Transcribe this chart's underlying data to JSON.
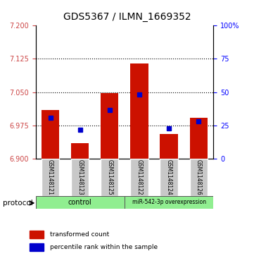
{
  "title": "GDS5367 / ILMN_1669352",
  "samples": [
    "GSM1148121",
    "GSM1148123",
    "GSM1148125",
    "GSM1148122",
    "GSM1148124",
    "GSM1148126"
  ],
  "red_bar_tops": [
    7.01,
    6.935,
    7.048,
    7.115,
    6.955,
    6.992
  ],
  "blue_dot_values": [
    6.992,
    6.965,
    7.01,
    7.045,
    6.968,
    6.984
  ],
  "baseline": 6.9,
  "ylim_left": [
    6.9,
    7.2
  ],
  "ylim_right": [
    0,
    100
  ],
  "yticks_left": [
    6.9,
    6.975,
    7.05,
    7.125,
    7.2
  ],
  "yticks_right": [
    0,
    25,
    50,
    75,
    100
  ],
  "bar_color": "#CC1100",
  "dot_color": "#0000CC",
  "bar_width": 0.6,
  "title_fontsize": 10,
  "tick_label_fontsize": 7,
  "left_tick_color": "#CC4444",
  "right_tick_color": "#0000FF",
  "sample_box_color": "#C8C8C8",
  "protocol_box_color": "#90EE90",
  "protocol_border_color": "#555555"
}
